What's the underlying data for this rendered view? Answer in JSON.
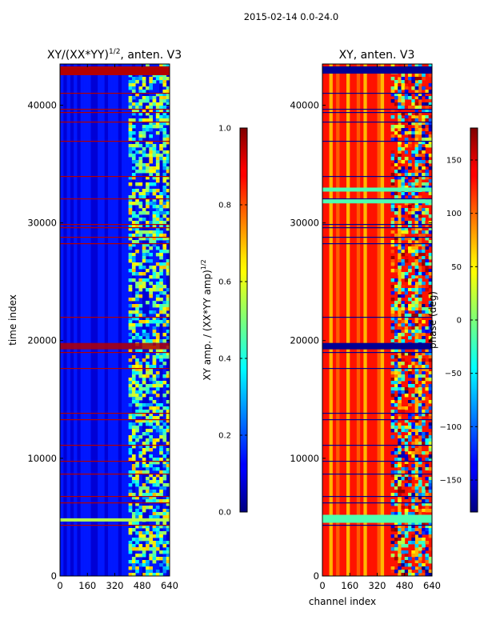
{
  "figure": {
    "suptitle": "2015-02-14 0.0-24.0"
  },
  "chart_data": [
    {
      "type": "heatmap",
      "title": "XY/(XX*YY)^1/2, anten. V3",
      "title_main": "XY/(XX*YY)",
      "title_sup": "1/2",
      "title_tail": ", anten. V3",
      "xlabel": "",
      "ylabel": "time index",
      "xlim": [
        0,
        640
      ],
      "ylim": [
        0,
        43500
      ],
      "xticks": [
        0,
        160,
        320,
        480,
        640
      ],
      "xtick_labels": [
        "0",
        "160",
        "320",
        "480",
        "640"
      ],
      "yticks": [
        0,
        10000,
        20000,
        30000,
        40000
      ],
      "ytick_labels": [
        "0",
        "10000",
        "20000",
        "30000",
        "40000"
      ],
      "colorbar": {
        "label_main": "XY amp. / (XX*YY amp)",
        "label_sup": "1/2",
        "range": [
          0.0,
          1.0
        ],
        "ticks": [
          0.0,
          0.2,
          0.4,
          0.6,
          0.8,
          1.0
        ],
        "tick_labels": [
          "0.0",
          "0.2",
          "0.4",
          "0.6",
          "0.8",
          "1.0"
        ]
      },
      "notes": "Amplitude mostly ~0.1 (blue) for channels 0-400, higher (0.4-0.7) for channels ~400-640; many flagged rows near 1.0 (dark red), solid block near time index 43000."
    },
    {
      "type": "heatmap",
      "title": "XY, anten. V3",
      "xlabel": "channel index",
      "ylabel": "",
      "xlim": [
        0,
        640
      ],
      "ylim": [
        0,
        43500
      ],
      "xticks": [
        0,
        160,
        320,
        480,
        640
      ],
      "xtick_labels": [
        "0",
        "160",
        "320",
        "480",
        "640"
      ],
      "yticks": [
        0,
        10000,
        20000,
        30000,
        40000
      ],
      "ytick_labels": [
        "0",
        "10000",
        "20000",
        "30000",
        "40000"
      ],
      "colorbar": {
        "label": "phase (deg)",
        "range": [
          -180,
          180
        ],
        "ticks": [
          -150,
          -100,
          -50,
          0,
          50,
          100,
          150
        ],
        "tick_labels": [
          "−150",
          "−100",
          "−50",
          "0",
          "50",
          "100",
          "150"
        ]
      },
      "notes": "Phase mostly ~120-150 deg (orange) for channels 0-400, mixed -180..180 for channels ~400-640; many flagged rows (dark blue) and a light-green band near time index 4500."
    }
  ]
}
